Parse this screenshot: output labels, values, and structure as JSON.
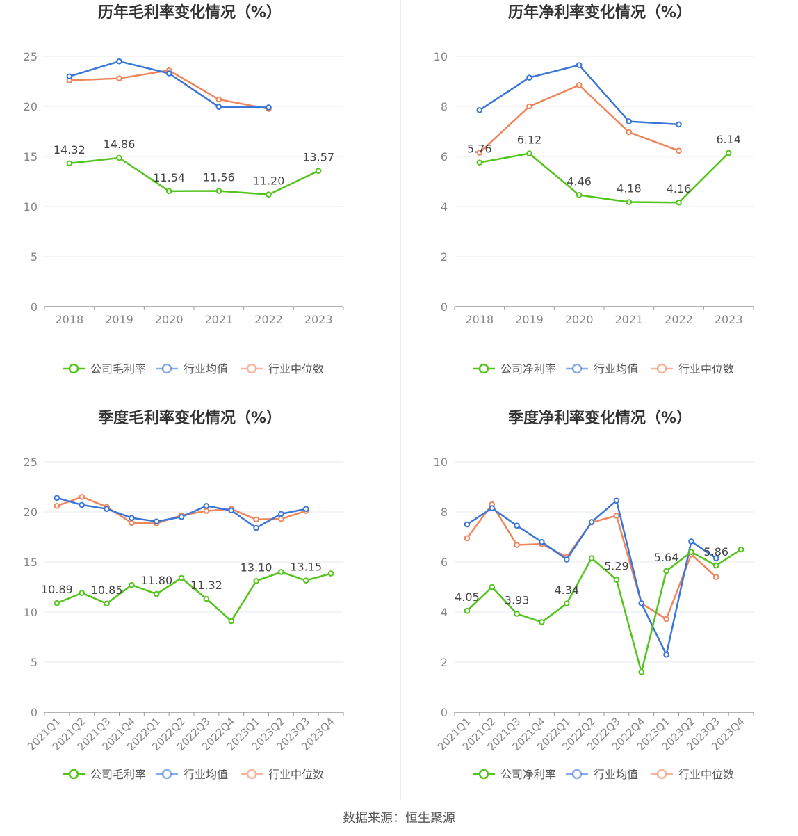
{
  "charts": [
    {
      "id": "annual-gross",
      "title": "历年毛利率变化情况（%）",
      "type": "line",
      "categories": [
        "2018",
        "2019",
        "2020",
        "2021",
        "2022",
        "2023"
      ],
      "ylim": [
        0,
        25
      ],
      "yticks": [
        0,
        5,
        10,
        15,
        20,
        25
      ],
      "series": [
        {
          "name": "公司毛利率",
          "color": "#52c41a",
          "values": [
            14.32,
            14.86,
            11.54,
            11.56,
            11.2,
            13.57
          ],
          "labels": [
            "14.32",
            "14.86",
            "11.54",
            "11.56",
            "11.20",
            "13.57"
          ]
        },
        {
          "name": "行业均值",
          "color": "#3a75d8",
          "values": [
            23.0,
            24.5,
            23.3,
            19.95,
            19.9,
            null
          ],
          "labels": []
        },
        {
          "name": "行业中位数",
          "color": "#f0855c",
          "values": [
            22.6,
            22.8,
            23.6,
            20.7,
            19.75,
            null
          ],
          "labels": []
        }
      ]
    },
    {
      "id": "annual-net",
      "title": "历年净利率变化情况（%）",
      "type": "line",
      "categories": [
        "2018",
        "2019",
        "2020",
        "2021",
        "2022",
        "2023"
      ],
      "ylim": [
        0,
        10
      ],
      "yticks": [
        0,
        2,
        4,
        6,
        8,
        10
      ],
      "series": [
        {
          "name": "公司净利率",
          "color": "#52c41a",
          "values": [
            5.76,
            6.12,
            4.46,
            4.18,
            4.16,
            6.14
          ],
          "labels": [
            "5.76",
            "6.12",
            "4.46",
            "4.18",
            "4.16",
            "6.14"
          ]
        },
        {
          "name": "行业均值",
          "color": "#3a75d8",
          "values": [
            7.85,
            9.15,
            9.65,
            7.4,
            7.28,
            null
          ],
          "labels": []
        },
        {
          "name": "行业中位数",
          "color": "#f0855c",
          "values": [
            6.15,
            8.0,
            8.85,
            6.97,
            6.23,
            null
          ],
          "labels": []
        }
      ]
    },
    {
      "id": "quarterly-gross",
      "title": "季度毛利率变化情况（%）",
      "type": "line",
      "categories": [
        "2021Q1",
        "2021Q2",
        "2021Q3",
        "2021Q4",
        "2022Q1",
        "2022Q2",
        "2022Q3",
        "2022Q4",
        "2023Q1",
        "2023Q2",
        "2023Q3",
        "2023Q4"
      ],
      "ylim": [
        0,
        25
      ],
      "yticks": [
        0,
        5,
        10,
        15,
        20,
        25
      ],
      "series": [
        {
          "name": "公司毛利率",
          "color": "#52c41a",
          "values": [
            10.89,
            11.9,
            10.85,
            12.7,
            11.8,
            13.4,
            11.32,
            9.1,
            13.1,
            14.0,
            13.15,
            13.85
          ],
          "labels": [
            "10.89",
            "",
            "10.85",
            "",
            "11.80",
            "",
            "11.32",
            "",
            "13.10",
            "",
            "13.15",
            ""
          ]
        },
        {
          "name": "行业均值",
          "color": "#3a75d8",
          "values": [
            21.4,
            20.7,
            20.3,
            19.4,
            19.05,
            19.5,
            20.6,
            20.15,
            18.4,
            19.8,
            20.3,
            null
          ],
          "labels": []
        },
        {
          "name": "行业中位数",
          "color": "#f0855c",
          "values": [
            20.6,
            21.5,
            20.5,
            18.9,
            18.85,
            19.65,
            20.1,
            20.3,
            19.25,
            19.3,
            20.1,
            null
          ],
          "labels": []
        }
      ]
    },
    {
      "id": "quarterly-net",
      "title": "季度净利率变化情况（%）",
      "type": "line",
      "categories": [
        "2021Q1",
        "2021Q2",
        "2021Q3",
        "2021Q4",
        "2022Q1",
        "2022Q2",
        "2022Q3",
        "2022Q4",
        "2023Q1",
        "2023Q2",
        "2023Q3",
        "2023Q4"
      ],
      "ylim": [
        0,
        10
      ],
      "yticks": [
        0,
        2,
        4,
        6,
        8,
        10
      ],
      "series": [
        {
          "name": "公司净利率",
          "color": "#52c41a",
          "values": [
            4.05,
            5.0,
            3.93,
            3.6,
            4.34,
            6.15,
            5.29,
            1.6,
            5.64,
            6.4,
            5.86,
            6.5
          ],
          "labels": [
            "4.05",
            "",
            "3.93",
            "",
            "4.34",
            "",
            "5.29",
            "",
            "5.64",
            "",
            "5.86",
            ""
          ]
        },
        {
          "name": "行业均值",
          "color": "#3a75d8",
          "values": [
            7.5,
            8.15,
            7.45,
            6.8,
            6.1,
            7.6,
            8.45,
            4.35,
            2.3,
            6.82,
            6.15,
            null
          ],
          "labels": []
        },
        {
          "name": "行业中位数",
          "color": "#f0855c",
          "values": [
            6.95,
            8.3,
            6.68,
            6.72,
            6.2,
            7.58,
            7.85,
            4.35,
            3.72,
            6.3,
            5.4,
            null
          ],
          "labels": []
        }
      ]
    }
  ],
  "footer": {
    "source": "数据来源：恒生聚源"
  }
}
